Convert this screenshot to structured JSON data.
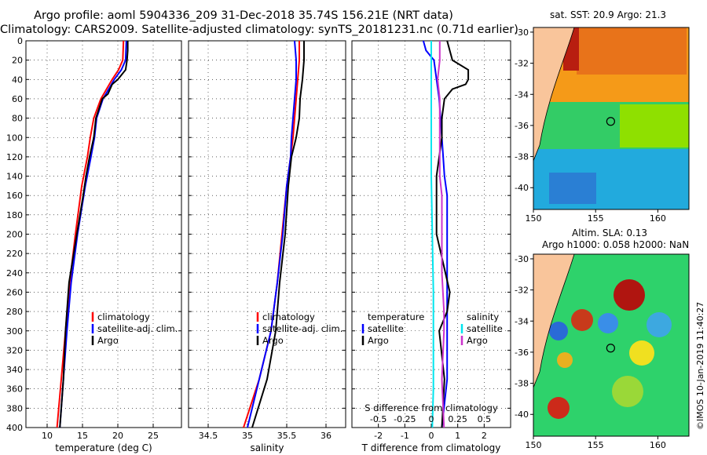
{
  "titles": {
    "line1": "Argo profile: aoml 5904336_209 31-Dec-2018 35.74S 156.21E (NRT data)",
    "line2": "Climatology: CARS2009. Satellite-adjusted climatology: synTS_20181231.nc (0.71d earlier)"
  },
  "colors": {
    "climatology": "#ff0000",
    "satellite": "#0000ff",
    "argo": "#000000",
    "sat_t": "#00e5ee",
    "sat_s": "#cc33cc",
    "land": "#f9c59b"
  },
  "chart_data": [
    {
      "type": "line",
      "name": "temperature",
      "xlabel": "temperature (deg C)",
      "ylabel": "",
      "xlim": [
        7,
        29
      ],
      "ylim": [
        400,
        0
      ],
      "xticks": [
        "10",
        "15",
        "20",
        "25"
      ],
      "yticks": [
        "0",
        "20",
        "40",
        "60",
        "80",
        "100",
        "120",
        "140",
        "160",
        "180",
        "200",
        "220",
        "240",
        "260",
        "280",
        "300",
        "320",
        "340",
        "360",
        "380",
        "400"
      ],
      "legend": [
        "climatology",
        "satellite-adj. clim.",
        "Argo"
      ],
      "series": [
        {
          "name": "climatology",
          "depth": [
            0,
            20,
            30,
            40,
            60,
            80,
            100,
            120,
            150,
            200,
            250,
            300,
            350,
            400
          ],
          "values": [
            20.8,
            20.7,
            20.1,
            19.2,
            17.6,
            16.6,
            16.1,
            15.7,
            14.9,
            14,
            13.2,
            12.6,
            12,
            11.4
          ]
        },
        {
          "name": "satellite-adj. clim.",
          "depth": [
            0,
            20,
            30,
            40,
            60,
            80,
            100,
            120,
            150,
            200,
            250,
            300,
            350,
            400
          ],
          "values": [
            21.2,
            21.1,
            20.5,
            19.5,
            17.9,
            17,
            16.7,
            16.2,
            15.4,
            14.3,
            13.4,
            12.8,
            12.3,
            11.8
          ]
        },
        {
          "name": "Argo",
          "depth": [
            0,
            10,
            20,
            30,
            40,
            45,
            55,
            60,
            80,
            100,
            120,
            140,
            160,
            200,
            250,
            300,
            350,
            400
          ],
          "values": [
            21.4,
            21.4,
            21.3,
            21.1,
            20,
            19.2,
            18.6,
            17.8,
            16.9,
            16.6,
            16,
            15.5,
            15.1,
            14.2,
            13.1,
            12.6,
            12.3,
            11.8
          ]
        }
      ]
    },
    {
      "type": "line",
      "name": "salinity",
      "xlabel": "salinity",
      "ylabel": "",
      "xlim": [
        34.25,
        36.25
      ],
      "ylim": [
        400,
        0
      ],
      "xticks": [
        "34.5",
        "35",
        "35.5",
        "36"
      ],
      "legend": [
        "climatology",
        "satellite-adj. clim.",
        "Argo"
      ],
      "series": [
        {
          "name": "climatology",
          "depth": [
            0,
            20,
            40,
            60,
            80,
            100,
            120,
            150,
            200,
            250,
            300,
            350,
            400
          ],
          "values": [
            35.66,
            35.66,
            35.64,
            35.62,
            35.6,
            35.58,
            35.55,
            35.5,
            35.44,
            35.38,
            35.3,
            35.15,
            34.95
          ]
        },
        {
          "name": "satellite-adj. clim.",
          "depth": [
            0,
            20,
            40,
            60,
            80,
            100,
            120,
            150,
            200,
            250,
            300,
            350,
            400
          ],
          "values": [
            35.6,
            35.62,
            35.62,
            35.6,
            35.58,
            35.56,
            35.55,
            35.5,
            35.45,
            35.38,
            35.3,
            35.15,
            35
          ]
        },
        {
          "name": "Argo",
          "depth": [
            0,
            20,
            40,
            60,
            80,
            100,
            120,
            150,
            200,
            250,
            300,
            350,
            400
          ],
          "values": [
            35.72,
            35.72,
            35.7,
            35.67,
            35.66,
            35.62,
            35.56,
            35.52,
            35.48,
            35.41,
            35.36,
            35.25,
            35.06
          ]
        }
      ]
    },
    {
      "type": "line",
      "name": "differences",
      "xlabel": "T difference from climatology",
      "top_axis_label": "S difference from climatology",
      "xlim": [
        -3,
        3
      ],
      "ylim": [
        400,
        0
      ],
      "xticks": [
        "-2",
        "-1",
        "0",
        "1",
        "2"
      ],
      "top_ticks": [
        "-0.5",
        "-0.25",
        "0",
        "0.25",
        "0.5"
      ],
      "legend_t": [
        "temperature",
        "satellite",
        "Argo"
      ],
      "legend_s": [
        "salinity",
        "satellite",
        "Argo"
      ],
      "series": [
        {
          "name": "T satellite",
          "depth": [
            0,
            10,
            20,
            40,
            60,
            100,
            140,
            160,
            200,
            250,
            300,
            350,
            400
          ],
          "values": [
            -0.3,
            -0.2,
            0.1,
            0.2,
            0.3,
            0.4,
            0.5,
            0.6,
            0.6,
            0.6,
            0.6,
            0.6,
            0.4
          ]
        },
        {
          "name": "T Argo",
          "depth": [
            0,
            20,
            30,
            40,
            45,
            50,
            60,
            80,
            100,
            140,
            200,
            260,
            280,
            300,
            350,
            400
          ],
          "values": [
            0.6,
            0.8,
            1.4,
            1.4,
            1.3,
            0.8,
            0.5,
            0.4,
            0.4,
            0.2,
            0.2,
            0.7,
            0.6,
            0.3,
            0.5,
            0.4
          ]
        },
        {
          "name": "S satellite",
          "depth": [
            0,
            40,
            80,
            100,
            140,
            200,
            260,
            300,
            360,
            400
          ],
          "values": [
            0,
            0,
            0,
            0,
            0,
            0.01,
            0.02,
            0.02,
            0.02,
            0.01
          ]
        },
        {
          "name": "S Argo",
          "depth": [
            0,
            20,
            40,
            60,
            80,
            100,
            140,
            160,
            200,
            240,
            280,
            300,
            350,
            400
          ],
          "values": [
            0.08,
            0.08,
            0.06,
            0.08,
            0.08,
            0.08,
            0.08,
            0.1,
            0.1,
            0.1,
            0.12,
            0.12,
            0.1,
            0.12
          ]
        }
      ]
    }
  ],
  "maps": {
    "sst": {
      "title": "sat. SST: 20.9 Argo: 21.3",
      "yticks": [
        "-30",
        "-32",
        "-34",
        "-36",
        "-38",
        "-40"
      ],
      "xticks": [
        "150",
        "155",
        "160"
      ]
    },
    "sla": {
      "title_1": "Altim. SLA: 0.13",
      "title_2": "Argo h1000: 0.058 h2000: NaN",
      "yticks": [
        "-30",
        "-32",
        "-34",
        "-36",
        "-38",
        "-40"
      ],
      "xticks": [
        "150",
        "155",
        "160"
      ]
    }
  },
  "credit": "©IMOS 10-Jan-2019 11:40:27"
}
